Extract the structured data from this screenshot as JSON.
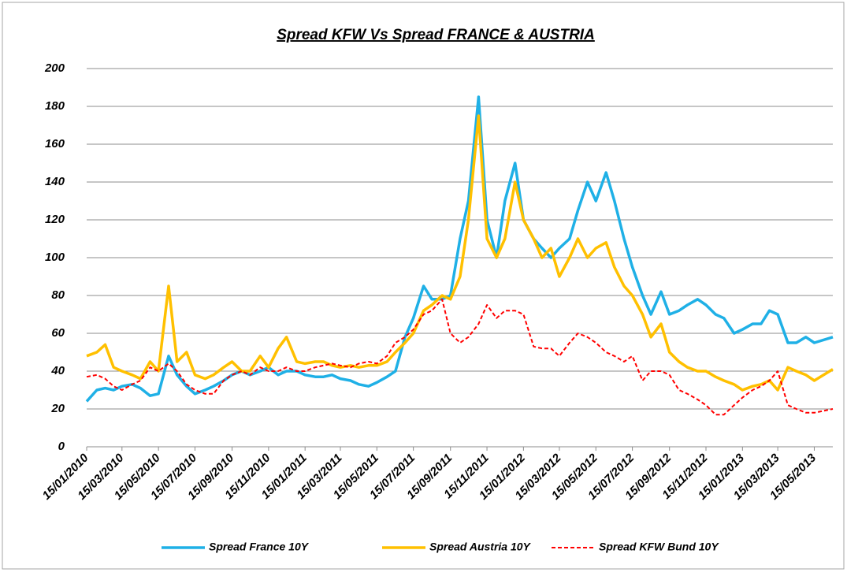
{
  "chart_data": {
    "type": "line",
    "title": "Spread KFW Vs Spread FRANCE & AUSTRIA",
    "x": [
      "2010-01-15",
      "2010-02-01",
      "2010-02-15",
      "2010-03-01",
      "2010-03-15",
      "2010-04-01",
      "2010-04-15",
      "2010-05-01",
      "2010-05-15",
      "2010-06-01",
      "2010-06-15",
      "2010-07-01",
      "2010-07-15",
      "2010-08-01",
      "2010-08-15",
      "2010-09-01",
      "2010-09-15",
      "2010-10-01",
      "2010-10-15",
      "2010-11-01",
      "2010-11-15",
      "2010-12-01",
      "2010-12-15",
      "2011-01-01",
      "2011-01-15",
      "2011-02-01",
      "2011-02-15",
      "2011-03-01",
      "2011-03-15",
      "2011-04-01",
      "2011-04-15",
      "2011-05-01",
      "2011-05-15",
      "2011-06-01",
      "2011-06-15",
      "2011-07-01",
      "2011-07-15",
      "2011-08-01",
      "2011-08-15",
      "2011-09-01",
      "2011-09-15",
      "2011-10-01",
      "2011-10-15",
      "2011-11-01",
      "2011-11-15",
      "2011-12-01",
      "2011-12-15",
      "2012-01-01",
      "2012-01-15",
      "2012-02-01",
      "2012-02-15",
      "2012-03-01",
      "2012-03-15",
      "2012-04-01",
      "2012-04-15",
      "2012-05-01",
      "2012-05-15",
      "2012-06-01",
      "2012-06-15",
      "2012-07-01",
      "2012-07-15",
      "2012-08-01",
      "2012-08-15",
      "2012-09-01",
      "2012-09-15",
      "2012-10-01",
      "2012-10-15",
      "2012-11-01",
      "2012-11-15",
      "2012-12-01",
      "2012-12-15",
      "2013-01-01",
      "2013-01-15",
      "2013-02-01",
      "2013-02-15",
      "2013-03-01",
      "2013-03-15",
      "2013-04-01",
      "2013-04-15",
      "2013-05-01",
      "2013-05-15",
      "2013-06-15"
    ],
    "series": [
      {
        "name": "Spread France 10Y",
        "color": "#1fb0e6",
        "dash": false,
        "values": [
          24,
          30,
          31,
          30,
          32,
          33,
          31,
          27,
          28,
          48,
          38,
          32,
          28,
          30,
          32,
          35,
          38,
          40,
          38,
          40,
          42,
          38,
          40,
          40,
          38,
          37,
          37,
          38,
          36,
          35,
          33,
          32,
          34,
          37,
          40,
          58,
          68,
          85,
          78,
          78,
          80,
          110,
          130,
          185,
          120,
          100,
          130,
          150,
          120,
          110,
          105,
          100,
          105,
          110,
          125,
          140,
          130,
          145,
          130,
          110,
          95,
          80,
          70,
          82,
          70,
          72,
          75,
          78,
          75,
          70,
          68,
          60,
          62,
          65,
          65,
          72,
          70,
          55,
          55,
          58,
          55,
          58
        ]
      },
      {
        "name": "Spread Austria 10Y",
        "color": "#ffc000",
        "dash": false,
        "values": [
          48,
          50,
          54,
          42,
          40,
          38,
          36,
          45,
          40,
          85,
          45,
          50,
          38,
          36,
          38,
          42,
          45,
          40,
          40,
          48,
          42,
          52,
          58,
          45,
          44,
          45,
          45,
          43,
          42,
          43,
          42,
          43,
          43,
          45,
          50,
          55,
          60,
          72,
          75,
          80,
          78,
          90,
          120,
          175,
          110,
          100,
          110,
          140,
          120,
          110,
          100,
          105,
          90,
          100,
          110,
          100,
          105,
          108,
          95,
          85,
          80,
          70,
          58,
          65,
          50,
          45,
          42,
          40,
          40,
          37,
          35,
          33,
          30,
          32,
          33,
          35,
          30,
          42,
          40,
          38,
          35,
          41
        ]
      },
      {
        "name": "Spread KFW Bund 10Y",
        "color": "#ff0000",
        "dash": true,
        "values": [
          37,
          38,
          36,
          32,
          30,
          33,
          35,
          42,
          40,
          44,
          40,
          33,
          30,
          28,
          28,
          35,
          38,
          40,
          38,
          42,
          40,
          40,
          42,
          40,
          40,
          42,
          43,
          44,
          43,
          42,
          44,
          45,
          44,
          48,
          55,
          58,
          62,
          70,
          72,
          78,
          60,
          55,
          58,
          65,
          75,
          68,
          72,
          72,
          70,
          53,
          52,
          52,
          48,
          55,
          60,
          58,
          55,
          50,
          48,
          45,
          48,
          35,
          40,
          40,
          38,
          30,
          28,
          25,
          22,
          17,
          17,
          22,
          26,
          30,
          32,
          35,
          40,
          22,
          20,
          18,
          18,
          20
        ]
      }
    ],
    "xlim": [
      "2010-01-15",
      "2013-06-15"
    ],
    "xticks": [
      {
        "value": "2010-01-15",
        "label": "15/01/2010"
      },
      {
        "value": "2010-03-15",
        "label": "15/03/2010"
      },
      {
        "value": "2010-05-15",
        "label": "15/05/2010"
      },
      {
        "value": "2010-07-15",
        "label": "15/07/2010"
      },
      {
        "value": "2010-09-15",
        "label": "15/09/2010"
      },
      {
        "value": "2010-11-15",
        "label": "15/11/2010"
      },
      {
        "value": "2011-01-15",
        "label": "15/01/2011"
      },
      {
        "value": "2011-03-15",
        "label": "15/03/2011"
      },
      {
        "value": "2011-05-15",
        "label": "15/05/2011"
      },
      {
        "value": "2011-07-15",
        "label": "15/07/2011"
      },
      {
        "value": "2011-09-15",
        "label": "15/09/2011"
      },
      {
        "value": "2011-11-15",
        "label": "15/11/2011"
      },
      {
        "value": "2012-01-15",
        "label": "15/01/2012"
      },
      {
        "value": "2012-03-15",
        "label": "15/03/2012"
      },
      {
        "value": "2012-05-15",
        "label": "15/05/2012"
      },
      {
        "value": "2012-07-15",
        "label": "15/07/2012"
      },
      {
        "value": "2012-09-15",
        "label": "15/09/2012"
      },
      {
        "value": "2012-11-15",
        "label": "15/11/2012"
      },
      {
        "value": "2013-01-15",
        "label": "15/01/2013"
      },
      {
        "value": "2013-03-15",
        "label": "15/03/2013"
      },
      {
        "value": "2013-05-15",
        "label": "15/05/2013"
      }
    ],
    "ylim": [
      0,
      200
    ],
    "yticks": [
      0,
      20,
      40,
      60,
      80,
      100,
      120,
      140,
      160,
      180,
      200
    ],
    "grid": true,
    "legend": "bottom"
  }
}
